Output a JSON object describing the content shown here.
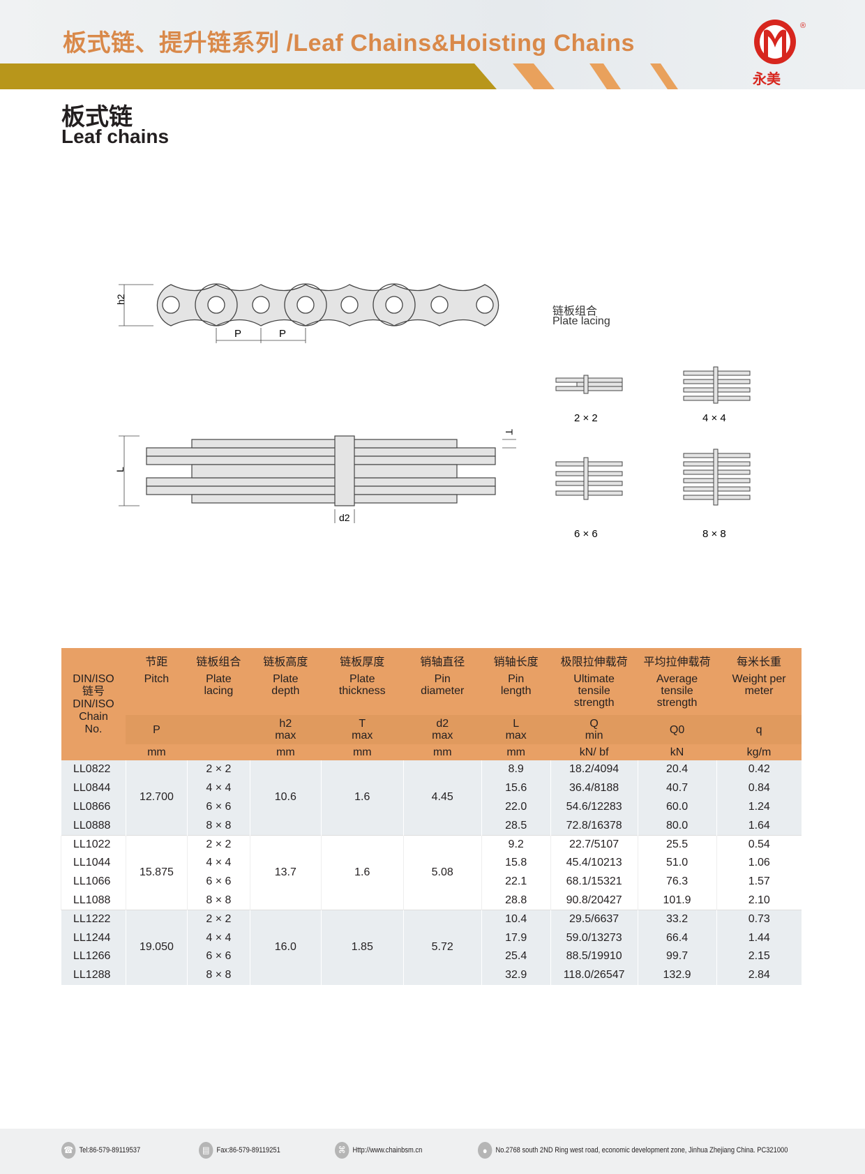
{
  "header": {
    "title": "板式链、提升链系列 /Leaf Chains&Hoisting Chains",
    "brand": "永美",
    "registered": "®"
  },
  "page_title": {
    "cn": "板式链",
    "en": "Leaf chains"
  },
  "diagram": {
    "h2": "h2",
    "P1": "P",
    "P2": "P",
    "L": "L",
    "T": "T",
    "d2": "d2",
    "lacing_cn": "链板组合",
    "lacing_en": "Plate lacing",
    "lacings": [
      "2 × 2",
      "4 × 4",
      "6 × 6",
      "8 × 8"
    ]
  },
  "table": {
    "headers": [
      {
        "cn": "",
        "en": "DIN/ISO\n链号\nDIN/ISO\nChain\nNo."
      },
      {
        "cn": "节距",
        "en": "Pitch",
        "sym": "P",
        "unit": "mm"
      },
      {
        "cn": "链板组合",
        "en": "Plate lacing",
        "sym": "",
        "unit": ""
      },
      {
        "cn": "链板高度",
        "en": "Plate depth",
        "sym": "h2 max",
        "unit": "mm"
      },
      {
        "cn": "链板厚度",
        "en": "Plate thickness",
        "sym": "T max",
        "unit": "mm"
      },
      {
        "cn": "销轴直径",
        "en": "Pin diameter",
        "sym": "d2 max",
        "unit": "mm"
      },
      {
        "cn": "销轴长度",
        "en": "Pin length",
        "sym": "L max",
        "unit": "mm"
      },
      {
        "cn": "极限拉伸载荷",
        "en": "Ultimate tensile strength",
        "sym": "Q min",
        "unit": "kN/ bf"
      },
      {
        "cn": "平均拉伸载荷",
        "en": "Average tensile strength",
        "sym": "Q0",
        "unit": "kN"
      },
      {
        "cn": "每米长重",
        "en": "Weight per meter",
        "sym": "q",
        "unit": "kg/m"
      }
    ],
    "groups": [
      {
        "pitch": "12.700",
        "depth": "10.6",
        "thick": "1.6",
        "pin": "4.45",
        "rows": [
          [
            "LL0822",
            "2 × 2",
            "8.9",
            "18.2/4094",
            "20.4",
            "0.42"
          ],
          [
            "LL0844",
            "4 × 4",
            "15.6",
            "36.4/8188",
            "40.7",
            "0.84"
          ],
          [
            "LL0866",
            "6 × 6",
            "22.0",
            "54.6/12283",
            "60.0",
            "1.24"
          ],
          [
            "LL0888",
            "8 × 8",
            "28.5",
            "72.8/16378",
            "80.0",
            "1.64"
          ]
        ]
      },
      {
        "pitch": "15.875",
        "depth": "13.7",
        "thick": "1.6",
        "pin": "5.08",
        "rows": [
          [
            "LL1022",
            "2 × 2",
            "9.2",
            "22.7/5107",
            "25.5",
            "0.54"
          ],
          [
            "LL1044",
            "4 × 4",
            "15.8",
            "45.4/10213",
            "51.0",
            "1.06"
          ],
          [
            "LL1066",
            "6 × 6",
            "22.1",
            "68.1/15321",
            "76.3",
            "1.57"
          ],
          [
            "LL1088",
            "8 × 8",
            "28.8",
            "90.8/20427",
            "101.9",
            "2.10"
          ]
        ]
      },
      {
        "pitch": "19.050",
        "depth": "16.0",
        "thick": "1.85",
        "pin": "5.72",
        "rows": [
          [
            "LL1222",
            "2 × 2",
            "10.4",
            "29.5/6637",
            "33.2",
            "0.73"
          ],
          [
            "LL1244",
            "4 × 4",
            "17.9",
            "59.0/13273",
            "66.4",
            "1.44"
          ],
          [
            "LL1266",
            "6 × 6",
            "25.4",
            "88.5/19910",
            "99.7",
            "2.15"
          ],
          [
            "LL1288",
            "8 × 8",
            "32.9",
            "118.0/26547",
            "132.9",
            "2.84"
          ]
        ]
      }
    ]
  },
  "footer": {
    "tel": "Tel:86-579-89119537",
    "fax": "Fax:86-579-89119251",
    "web": "Http://www.chainbsm.cn",
    "address": "No.2768 south 2ND Ring west road, economic development zone, Jinhua Zhejiang China. PC321000"
  },
  "colors": {
    "gold": "#b8961b",
    "orange": "#e8a065",
    "logo_red": "#d7261e"
  }
}
